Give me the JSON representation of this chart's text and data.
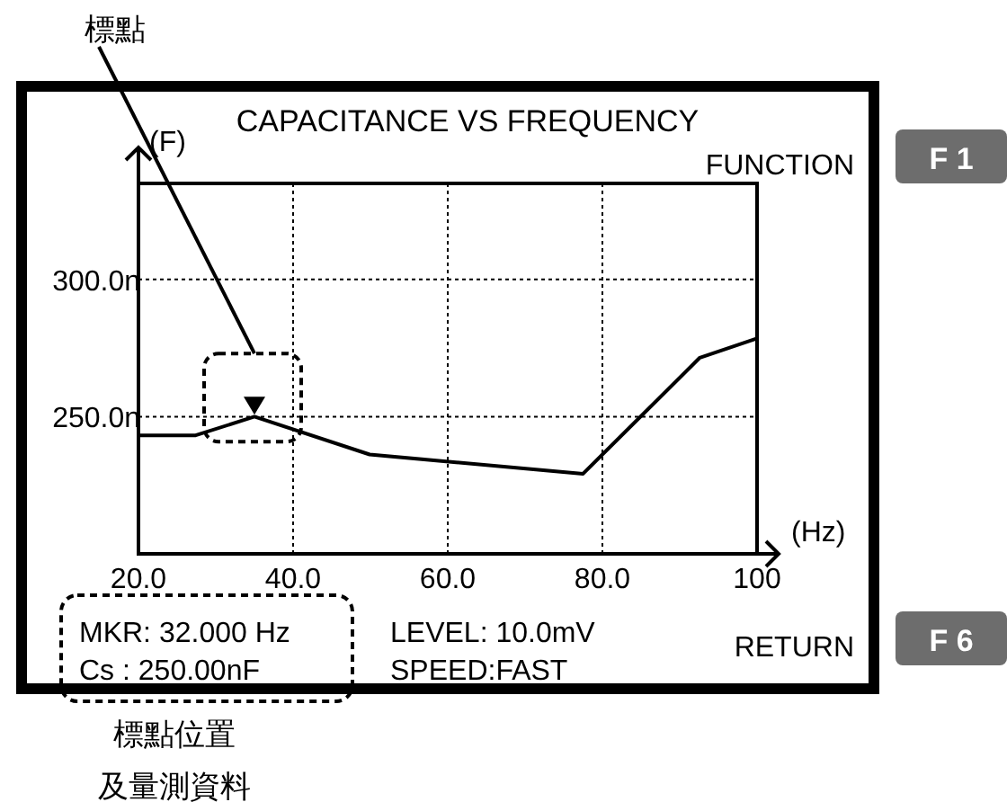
{
  "chart_data": {
    "type": "line",
    "title": "CAPACITANCE VS FREQUENCY",
    "xlabel": "(Hz)",
    "ylabel": "(F)",
    "xlim": [
      20,
      100
    ],
    "ylim": [
      200,
      335
    ],
    "xticks": [
      {
        "value": 20,
        "label": "20.0"
      },
      {
        "value": 40,
        "label": "40.0"
      },
      {
        "value": 60,
        "label": "60.0"
      },
      {
        "value": 80,
        "label": "80.0"
      },
      100
    ],
    "yticks": [
      {
        "value": 250,
        "label": "250.0n"
      },
      {
        "value": 300,
        "label": "300.0n"
      }
    ],
    "grid": true,
    "series": [
      {
        "type": "line",
        "color": "#000000",
        "marker": "none",
        "x": [
          20,
          27.4,
          35,
          49.9,
          77.5,
          92.6,
          100
        ],
        "values": [
          243.2,
          243.2,
          250,
          236.2,
          229.2,
          271.5,
          278.5
        ]
      },
      {
        "type": "scatter",
        "color": "#000000",
        "marker": "triangle",
        "x": [
          35
        ],
        "values": [
          254
        ]
      }
    ],
    "annotations": [
      "標點",
      "標點位置",
      "及量測資料",
      "FUNCTION",
      "RETURN",
      "F 1",
      "F 6",
      "MKR: 32.000 Hz",
      "Cs : 250.00nF",
      "LEVEL: 10.0mV",
      "SPEED:FAST"
    ]
  }
}
